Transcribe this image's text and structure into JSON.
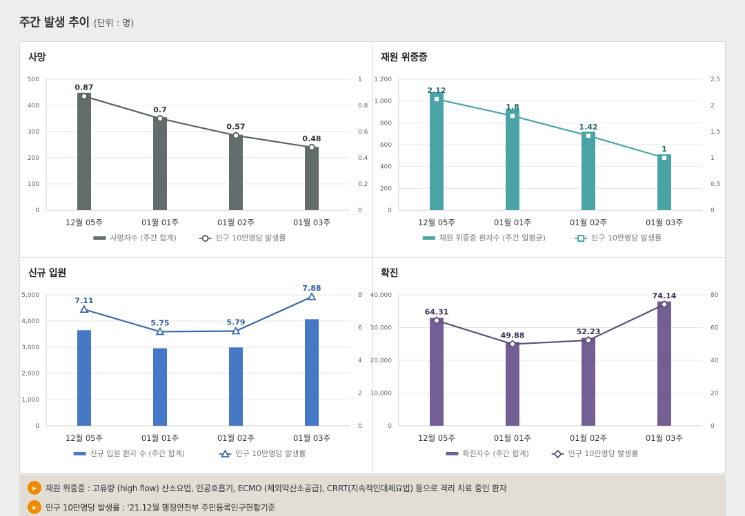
{
  "header": {
    "title": "주간 발생 추이",
    "unit": "(단위 : 명)"
  },
  "colors": {
    "deaths": "#636e6c",
    "severe": "#4aa4a6",
    "admissions": "#4578c6",
    "severe_line": "#4aa4a6",
    "confirmed": "#735f94",
    "line_dark": "#5a6462",
    "line_blue": "#3c6aa8",
    "line_purple": "#5b4c7a"
  },
  "chart_data": [
    {
      "type": "bar+line",
      "title": "사망",
      "categories": [
        "12월 05주",
        "01월 01주",
        "01월 02주",
        "01월 03주"
      ],
      "bar_values": [
        448,
        355,
        288,
        242
      ],
      "line_values": [
        0.87,
        0.7,
        0.57,
        0.48
      ],
      "line_labels": [
        "0.87",
        "0.7",
        "0.57",
        "0.48"
      ],
      "left_ticks": [
        "500",
        "400",
        "300",
        "200",
        "100",
        "0"
      ],
      "right_ticks": [
        "1",
        "0.8",
        "0.6",
        "0.4",
        "0.2",
        "0"
      ],
      "left_max": 500,
      "right_max": 1,
      "legend_bar": "사망자수 (주간 합계)",
      "legend_line": "인구 10만명당 발생률",
      "marker": "circle"
    },
    {
      "type": "bar+line",
      "title": "재원 위중증",
      "categories": [
        "12월 05주",
        "01월 01주",
        "01월 02주",
        "01월 03주"
      ],
      "bar_values": [
        1080,
        925,
        720,
        512
      ],
      "line_values": [
        2.12,
        1.8,
        1.42,
        1
      ],
      "line_labels": [
        "2.12",
        "1.8",
        "1.42",
        "1"
      ],
      "left_ticks": [
        "1,200",
        "1,000",
        "800",
        "600",
        "400",
        "200",
        "0"
      ],
      "right_ticks": [
        "2.5",
        "2",
        "1.5",
        "1",
        "0.5",
        "0"
      ],
      "left_max": 1200,
      "right_max": 2.5,
      "legend_bar": "재원 위중증 환자수 (주간 일평균)",
      "legend_line": "인구 10만명당 발생률",
      "marker": "square"
    },
    {
      "type": "bar+line",
      "title": "신규 입원",
      "categories": [
        "12월 05주",
        "01월 01주",
        "01월 02주",
        "01월 03주"
      ],
      "bar_values": [
        3650,
        2960,
        2990,
        4070
      ],
      "line_values": [
        7.11,
        5.75,
        5.79,
        7.88
      ],
      "line_labels": [
        "7.11",
        "5.75",
        "5.79",
        "7.88"
      ],
      "left_ticks": [
        "5,000",
        "4,000",
        "3,000",
        "2,000",
        "1,000",
        "0"
      ],
      "right_ticks": [
        "8",
        "6",
        "4",
        "2",
        "0"
      ],
      "left_max": 5000,
      "right_max": 8,
      "legend_bar": "신규 입원 환자 수 (주간 합계)",
      "legend_line": "인구 10만명당 발생률",
      "marker": "triangle"
    },
    {
      "type": "bar+line",
      "title": "확진",
      "categories": [
        "12월 05주",
        "01월 01주",
        "01월 02주",
        "01월 03주"
      ],
      "bar_values": [
        33000,
        25600,
        26900,
        38000
      ],
      "line_values": [
        64.31,
        49.88,
        52.23,
        74.14
      ],
      "line_labels": [
        "64.31",
        "49.88",
        "52.23",
        "74.14"
      ],
      "left_ticks": [
        "40,000",
        "30,000",
        "20,000",
        "10,000",
        "0"
      ],
      "right_ticks": [
        "80",
        "60",
        "40",
        "20",
        "0"
      ],
      "left_max": 40000,
      "right_max": 80,
      "legend_bar": "확진자수 (주간 합계)",
      "legend_line": "인구 10만명당 발생률",
      "marker": "diamond"
    }
  ],
  "notes": [
    "재원 위중증 : 고유량 (high flow) 산소요법, 인공호흡기, ECMO (체외막산소공급), CRRT(지속적인대체요법) 등으로 격리 치료 중인 환자",
    "인구 10만명당 발생률 : '21.12월 행정안전부 주민등록인구현황기준"
  ],
  "note_icon": "speaker-icon"
}
